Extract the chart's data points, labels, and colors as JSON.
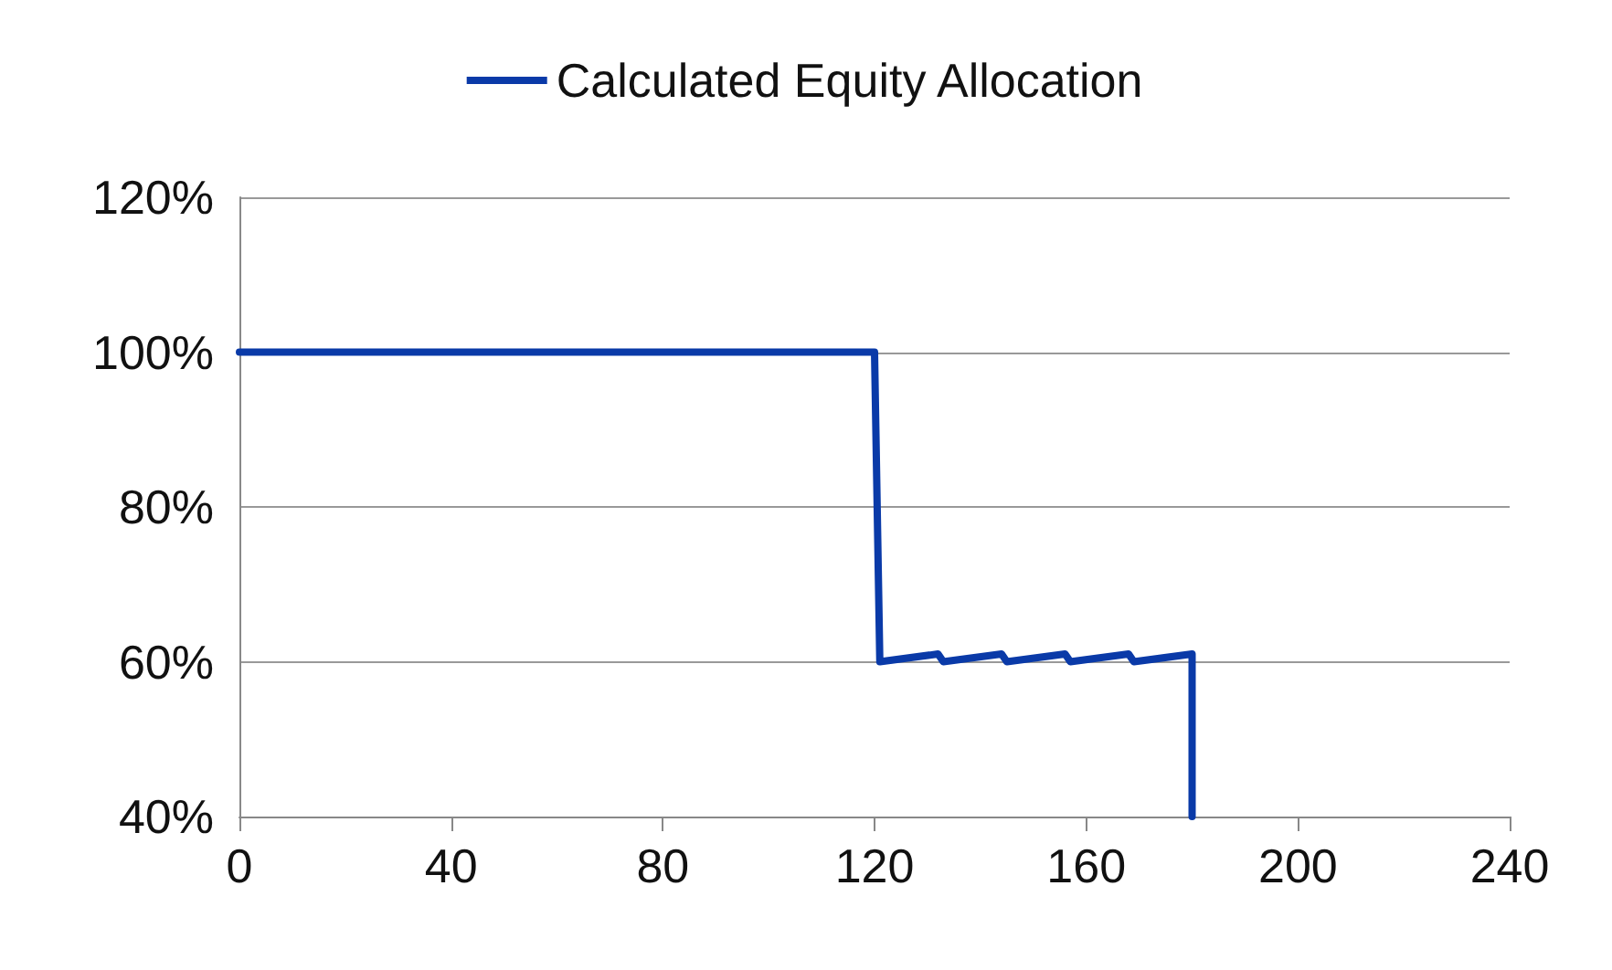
{
  "chart_data": {
    "type": "line",
    "series": [
      {
        "name": "Calculated Equity Allocation",
        "color": "#0a3aa8",
        "x": [
          0,
          120,
          121,
          132,
          133,
          144,
          145,
          156,
          157,
          168,
          169,
          180,
          180
        ],
        "values": [
          100,
          100,
          60,
          61,
          60,
          61,
          60,
          61,
          60,
          61,
          60,
          61,
          40
        ]
      }
    ],
    "xlim": [
      0,
      240
    ],
    "xticks": [
      0,
      40,
      80,
      120,
      160,
      200,
      240
    ],
    "ylim": [
      40,
      120
    ],
    "yticks": [
      {
        "value": 40,
        "label": "40%"
      },
      {
        "value": 60,
        "label": "60%"
      },
      {
        "value": 80,
        "label": "80%"
      },
      {
        "value": 100,
        "label": "100%"
      },
      {
        "value": 120,
        "label": "120%"
      }
    ],
    "grid": "y",
    "legend": "top",
    "marker": "none",
    "line_style": "solid"
  }
}
